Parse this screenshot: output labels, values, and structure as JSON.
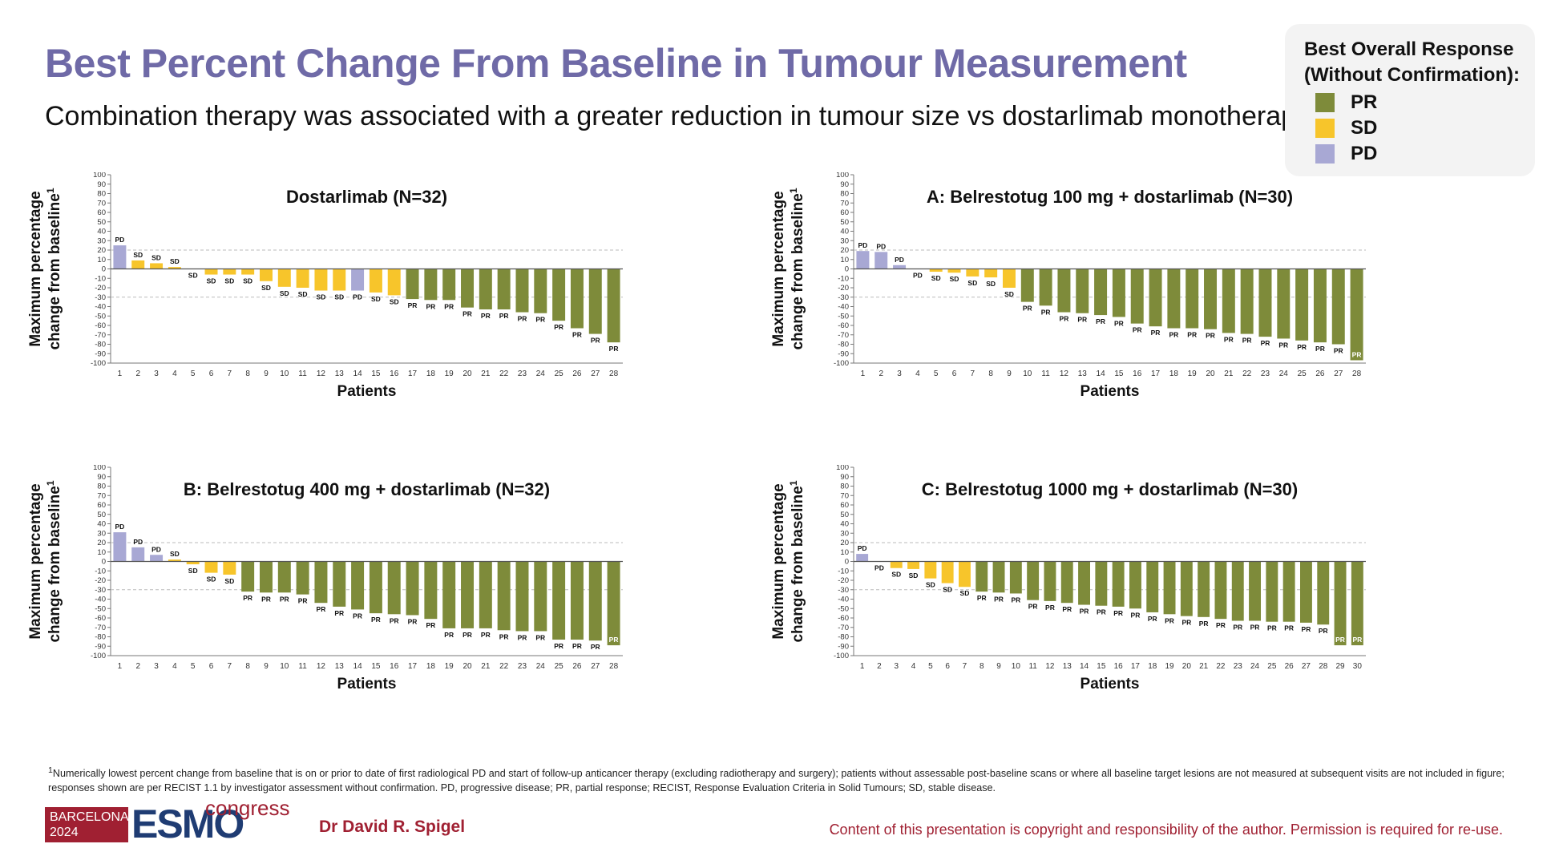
{
  "header": {
    "title": "Best Percent Change From Baseline in Tumour Measurement",
    "subtitle": "Combination therapy was associated with a greater reduction in tumour size vs dostarlimab monotherapy"
  },
  "legend": {
    "title_line1": "Best Overall Response",
    "title_line2": "(Without Confirmation):",
    "items": [
      {
        "label": "PR",
        "color": "#7e8b3a"
      },
      {
        "label": "SD",
        "color": "#f7c52b"
      },
      {
        "label": "PD",
        "color": "#a8a8d4"
      }
    ]
  },
  "colors": {
    "PR": "#7e8b3a",
    "SD": "#f7c52b",
    "PD": "#a8a8d4",
    "ref_line": "#bbbbbb"
  },
  "chart_data": [
    {
      "type": "bar",
      "title": "Dostarlimab (N=32)",
      "xlabel": "Patients",
      "ylabel_line1": "Maximum percentage",
      "ylabel_line2": "change from baseline",
      "ylabel_superscript": "1",
      "ylim": [
        -100,
        100
      ],
      "yticks": [
        100,
        90,
        80,
        70,
        60,
        50,
        40,
        30,
        20,
        10,
        0,
        -10,
        -20,
        -30,
        -40,
        -50,
        -60,
        -70,
        -80,
        -90,
        -100
      ],
      "reference_lines": [
        20,
        -30
      ],
      "categories": [
        "1",
        "2",
        "3",
        "4",
        "5",
        "6",
        "7",
        "8",
        "9",
        "10",
        "11",
        "12",
        "13",
        "14",
        "15",
        "16",
        "17",
        "18",
        "19",
        "20",
        "21",
        "22",
        "23",
        "24",
        "25",
        "26",
        "27",
        "28"
      ],
      "values": [
        25,
        9,
        6,
        2,
        0,
        -6,
        -6,
        -6,
        -13,
        -19,
        -20,
        -23,
        -23,
        -23,
        -25,
        -28,
        -32,
        -33,
        -33,
        -41,
        -43,
        -43,
        -46,
        -47,
        -55,
        -63,
        -69,
        -78
      ],
      "responses": [
        "PD",
        "SD",
        "SD",
        "SD",
        "SD",
        "SD",
        "SD",
        "SD",
        "SD",
        "SD",
        "SD",
        "SD",
        "SD",
        "PD",
        "SD",
        "SD",
        "PR",
        "PR",
        "PR",
        "PR",
        "PR",
        "PR",
        "PR",
        "PR",
        "PR",
        "PR",
        "PR",
        "PR"
      ]
    },
    {
      "type": "bar",
      "title": "A: Belrestotug 100 mg + dostarlimab (N=30)",
      "xlabel": "Patients",
      "ylabel_line1": "Maximum percentage",
      "ylabel_line2": "change from baseline",
      "ylabel_superscript": "1",
      "ylim": [
        -100,
        100
      ],
      "yticks": [
        100,
        90,
        80,
        70,
        60,
        50,
        40,
        30,
        20,
        10,
        0,
        -10,
        -20,
        -30,
        -40,
        -50,
        -60,
        -70,
        -80,
        -90,
        -100
      ],
      "reference_lines": [
        20,
        -30
      ],
      "categories": [
        "1",
        "2",
        "3",
        "4",
        "5",
        "6",
        "7",
        "8",
        "9",
        "10",
        "11",
        "12",
        "13",
        "14",
        "15",
        "16",
        "17",
        "18",
        "19",
        "20",
        "21",
        "22",
        "23",
        "24",
        "25",
        "26",
        "27",
        "28"
      ],
      "values": [
        19,
        18,
        4,
        0,
        -3,
        -4,
        -8,
        -9,
        -20,
        -35,
        -39,
        -46,
        -47,
        -49,
        -51,
        -58,
        -61,
        -63,
        -63,
        -64,
        -68,
        -69,
        -72,
        -74,
        -76,
        -78,
        -80,
        -97
      ],
      "responses": [
        "PD",
        "PD",
        "PD",
        "PD",
        "SD",
        "SD",
        "SD",
        "SD",
        "SD",
        "PR",
        "PR",
        "PR",
        "PR",
        "PR",
        "PR",
        "PR",
        "PR",
        "PR",
        "PR",
        "PR",
        "PR",
        "PR",
        "PR",
        "PR",
        "PR",
        "PR",
        "PR",
        "PR"
      ]
    },
    {
      "type": "bar",
      "title": "B: Belrestotug 400 mg + dostarlimab (N=32)",
      "xlabel": "Patients",
      "ylabel_line1": "Maximum percentage",
      "ylabel_line2": "change from baseline",
      "ylabel_superscript": "1",
      "ylim": [
        -100,
        100
      ],
      "yticks": [
        100,
        90,
        80,
        70,
        60,
        50,
        40,
        30,
        20,
        10,
        0,
        -10,
        -20,
        -30,
        -40,
        -50,
        -60,
        -70,
        -80,
        -90,
        -100
      ],
      "reference_lines": [
        20,
        -30
      ],
      "categories": [
        "1",
        "2",
        "3",
        "4",
        "5",
        "6",
        "7",
        "8",
        "9",
        "10",
        "11",
        "12",
        "13",
        "14",
        "15",
        "16",
        "17",
        "18",
        "19",
        "20",
        "21",
        "22",
        "23",
        "24",
        "25",
        "26",
        "27",
        "28"
      ],
      "values": [
        31,
        15,
        7,
        2,
        -3,
        -12,
        -14,
        -32,
        -33,
        -33,
        -35,
        -44,
        -48,
        -51,
        -55,
        -56,
        -57,
        -61,
        -71,
        -71,
        -71,
        -73,
        -74,
        -74,
        -83,
        -83,
        -84,
        -89
      ],
      "responses": [
        "PD",
        "PD",
        "PD",
        "SD",
        "SD",
        "SD",
        "SD",
        "PR",
        "PR",
        "PR",
        "PR",
        "PR",
        "PR",
        "PR",
        "PR",
        "PR",
        "PR",
        "PR",
        "PR",
        "PR",
        "PR",
        "PR",
        "PR",
        "PR",
        "PR",
        "PR",
        "PR",
        "PR"
      ]
    },
    {
      "type": "bar",
      "title": "C: Belrestotug 1000 mg + dostarlimab (N=30)",
      "xlabel": "Patients",
      "ylabel_line1": "Maximum percentage",
      "ylabel_line2": "change from baseline",
      "ylabel_superscript": "1",
      "ylim": [
        -100,
        100
      ],
      "yticks": [
        100,
        90,
        80,
        70,
        60,
        50,
        40,
        30,
        20,
        10,
        0,
        -10,
        -20,
        -30,
        -40,
        -50,
        -60,
        -70,
        -80,
        -90,
        -100
      ],
      "reference_lines": [
        20,
        -30
      ],
      "categories": [
        "1",
        "2",
        "3",
        "4",
        "5",
        "6",
        "7",
        "8",
        "9",
        "10",
        "11",
        "12",
        "13",
        "14",
        "15",
        "16",
        "17",
        "18",
        "19",
        "20",
        "21",
        "22",
        "23",
        "24",
        "25",
        "26",
        "27",
        "28",
        "29",
        "30"
      ],
      "values": [
        8,
        0,
        -7,
        -8,
        -18,
        -23,
        -27,
        -32,
        -33,
        -34,
        -41,
        -42,
        -44,
        -46,
        -47,
        -48,
        -50,
        -54,
        -56,
        -58,
        -59,
        -61,
        -63,
        -63,
        -64,
        -64,
        -65,
        -67,
        -89,
        -89
      ],
      "responses": [
        "PD",
        "PD",
        "SD",
        "SD",
        "SD",
        "SD",
        "SD",
        "PR",
        "PR",
        "PR",
        "PR",
        "PR",
        "PR",
        "PR",
        "PR",
        "PR",
        "PR",
        "PR",
        "PR",
        "PR",
        "PR",
        "PR",
        "PR",
        "PR",
        "PR",
        "PR",
        "PR",
        "PR",
        "PR",
        "PR"
      ]
    }
  ],
  "footnote": {
    "sup": "1",
    "text": "Numerically lowest percent change from baseline that is on or prior to date of first radiological PD and start of follow-up anticancer therapy (excluding radiotherapy and surgery); patients without assessable post-baseline scans or where all baseline target lesions are not measured at subsequent visits are not included in figure; responses shown are per RECIST 1.1 by investigator assessment without confirmation. PD, progressive disease; PR, partial response; RECIST, Response Evaluation Criteria in Solid Tumours; SD, stable disease."
  },
  "footer": {
    "logo_city": "BARCELONA",
    "logo_year": "2024",
    "logo_brand": "ESMO",
    "logo_congress": "congress",
    "author": "Dr David R. Spigel",
    "copyright": "Content of this presentation is copyright and responsibility of the author. Permission is required for re-use."
  }
}
